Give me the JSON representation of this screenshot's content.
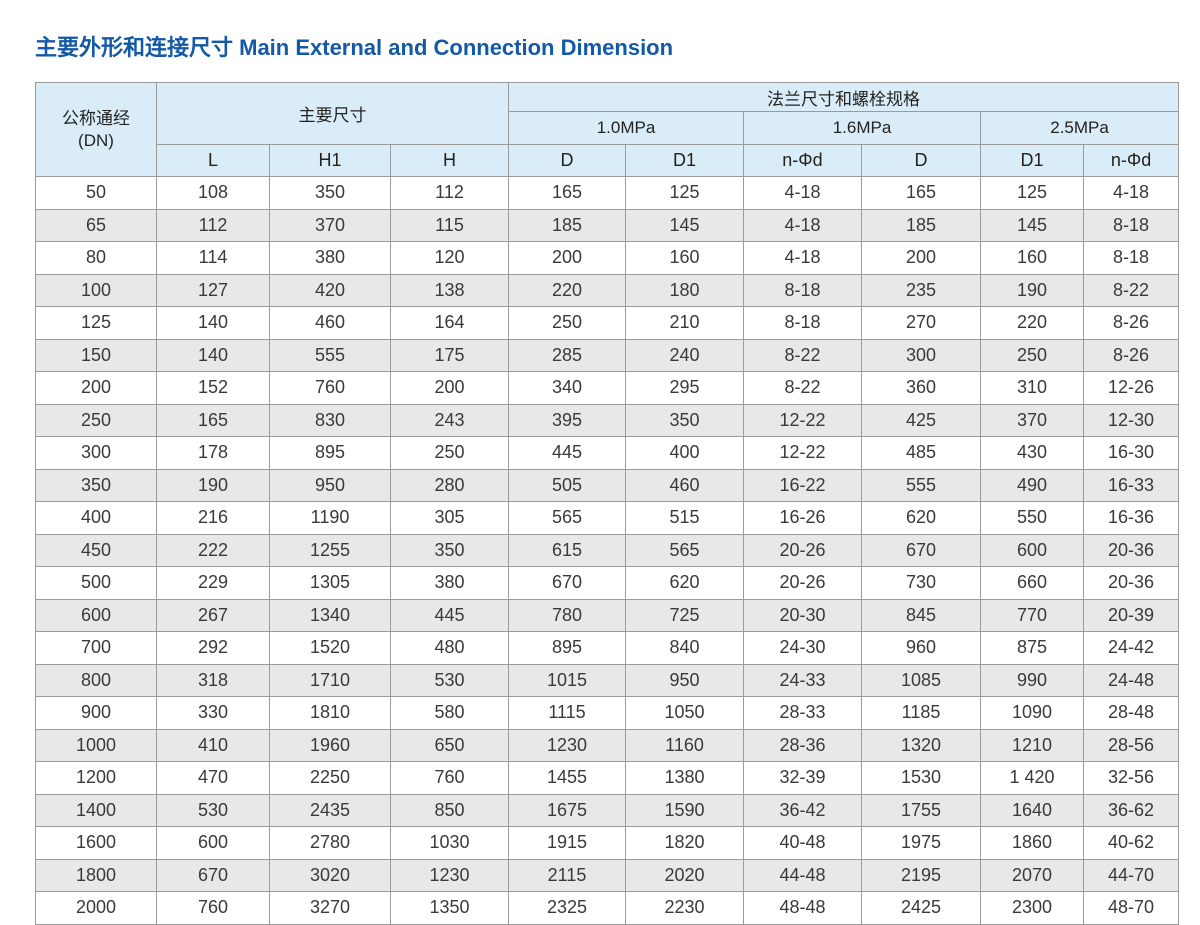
{
  "page": {
    "title": "主要外形和连接尺寸 Main External and Connection Dimension"
  },
  "colors": {
    "accent": "#1459A5",
    "header_bg": "#DAECF7",
    "row_alt_bg": "#E8E8E9",
    "border": "#9B9B9B",
    "text": "#3A3A3A"
  },
  "table": {
    "header": {
      "dn_line1": "公称通经",
      "dn_line2": "(DN)",
      "main_dims": "主要尺寸",
      "flange": "法兰尺寸和螺栓规格",
      "pressures": [
        "1.0MPa",
        "1.6MPa",
        "2.5MPa"
      ],
      "sub_columns": [
        "L",
        "H1",
        "H",
        "D",
        "D1",
        "n-Φd",
        "D",
        "D1",
        "n-Φd"
      ]
    },
    "rows": [
      [
        "50",
        "108",
        "350",
        "112",
        "165",
        "125",
        "4-18",
        "165",
        "125",
        "4-18"
      ],
      [
        "65",
        "112",
        "370",
        "115",
        "185",
        "145",
        "4-18",
        "185",
        "145",
        "8-18"
      ],
      [
        "80",
        "114",
        "380",
        "120",
        "200",
        "160",
        "4-18",
        "200",
        "160",
        "8-18"
      ],
      [
        "100",
        "127",
        "420",
        "138",
        "220",
        "180",
        "8-18",
        "235",
        "190",
        "8-22"
      ],
      [
        "125",
        "140",
        "460",
        "164",
        "250",
        "210",
        "8-18",
        "270",
        "220",
        "8-26"
      ],
      [
        "150",
        "140",
        "555",
        "175",
        "285",
        "240",
        "8-22",
        "300",
        "250",
        "8-26"
      ],
      [
        "200",
        "152",
        "760",
        "200",
        "340",
        "295",
        "8-22",
        "360",
        "310",
        "12-26"
      ],
      [
        "250",
        "165",
        "830",
        "243",
        "395",
        "350",
        "12-22",
        "425",
        "370",
        "12-30"
      ],
      [
        "300",
        "178",
        "895",
        "250",
        "445",
        "400",
        "12-22",
        "485",
        "430",
        "16-30"
      ],
      [
        "350",
        "190",
        "950",
        "280",
        "505",
        "460",
        "16-22",
        "555",
        "490",
        "16-33"
      ],
      [
        "400",
        "216",
        "1190",
        "305",
        "565",
        "515",
        "16-26",
        "620",
        "550",
        "16-36"
      ],
      [
        "450",
        "222",
        "1255",
        "350",
        "615",
        "565",
        "20-26",
        "670",
        "600",
        "20-36"
      ],
      [
        "500",
        "229",
        "1305",
        "380",
        "670",
        "620",
        "20-26",
        "730",
        "660",
        "20-36"
      ],
      [
        "600",
        "267",
        "1340",
        "445",
        "780",
        "725",
        "20-30",
        "845",
        "770",
        "20-39"
      ],
      [
        "700",
        "292",
        "1520",
        "480",
        "895",
        "840",
        "24-30",
        "960",
        "875",
        "24-42"
      ],
      [
        "800",
        "318",
        "1710",
        "530",
        "1015",
        "950",
        "24-33",
        "1085",
        "990",
        "24-48"
      ],
      [
        "900",
        "330",
        "1810",
        "580",
        "1115",
        "1050",
        "28-33",
        "1185",
        "1090",
        "28-48"
      ],
      [
        "1000",
        "410",
        "1960",
        "650",
        "1230",
        "1160",
        "28-36",
        "1320",
        "1210",
        "28-56"
      ],
      [
        "1200",
        "470",
        "2250",
        "760",
        "1455",
        "1380",
        "32-39",
        "1530",
        "1 420",
        "32-56"
      ],
      [
        "1400",
        "530",
        "2435",
        "850",
        "1675",
        "1590",
        "36-42",
        "1755",
        "1640",
        "36-62"
      ],
      [
        "1600",
        "600",
        "2780",
        "1030",
        "1915",
        "1820",
        "40-48",
        "1975",
        "1860",
        "40-62"
      ],
      [
        "1800",
        "670",
        "3020",
        "1230",
        "2115",
        "2020",
        "44-48",
        "2195",
        "2070",
        "44-70"
      ],
      [
        "2000",
        "760",
        "3270",
        "1350",
        "2325",
        "2230",
        "48-48",
        "2425",
        "2300",
        "48-70"
      ]
    ]
  }
}
